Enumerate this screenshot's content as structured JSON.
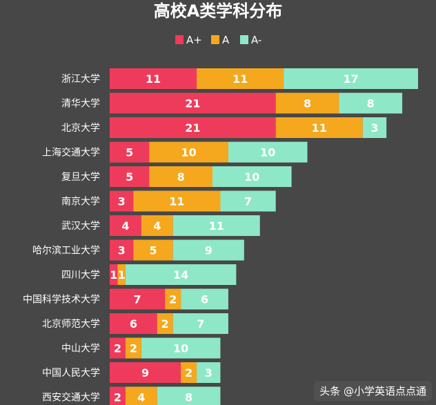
{
  "chart_data": {
    "type": "bar",
    "orientation": "horizontal",
    "stacked": true,
    "title": "高校A类学科分布",
    "legend_position": "top",
    "categories": [
      "浙江大学",
      "清华大学",
      "北京大学",
      "上海交通大学",
      "复旦大学",
      "南京大学",
      "武汉大学",
      "哈尔滨工业大学",
      "四川大学",
      "中国科学技术大学",
      "北京师范大学",
      "中山大学",
      "中国人民大学",
      "西安交通大学"
    ],
    "series": [
      {
        "name": "A+",
        "color": "#ef3b5b",
        "values": [
          11,
          21,
          21,
          5,
          5,
          3,
          4,
          3,
          1,
          7,
          6,
          2,
          9,
          2
        ]
      },
      {
        "name": "A",
        "color": "#f5a81e",
        "values": [
          11,
          8,
          11,
          10,
          8,
          11,
          4,
          5,
          1,
          2,
          2,
          2,
          2,
          4
        ]
      },
      {
        "name": "A-",
        "color": "#8ee8c8",
        "values": [
          17,
          8,
          3,
          10,
          10,
          7,
          11,
          9,
          14,
          6,
          7,
          10,
          3,
          8
        ]
      }
    ],
    "xlim": [
      0,
      39
    ],
    "grid": false
  },
  "watermark": "头条 @小学英语点点通"
}
